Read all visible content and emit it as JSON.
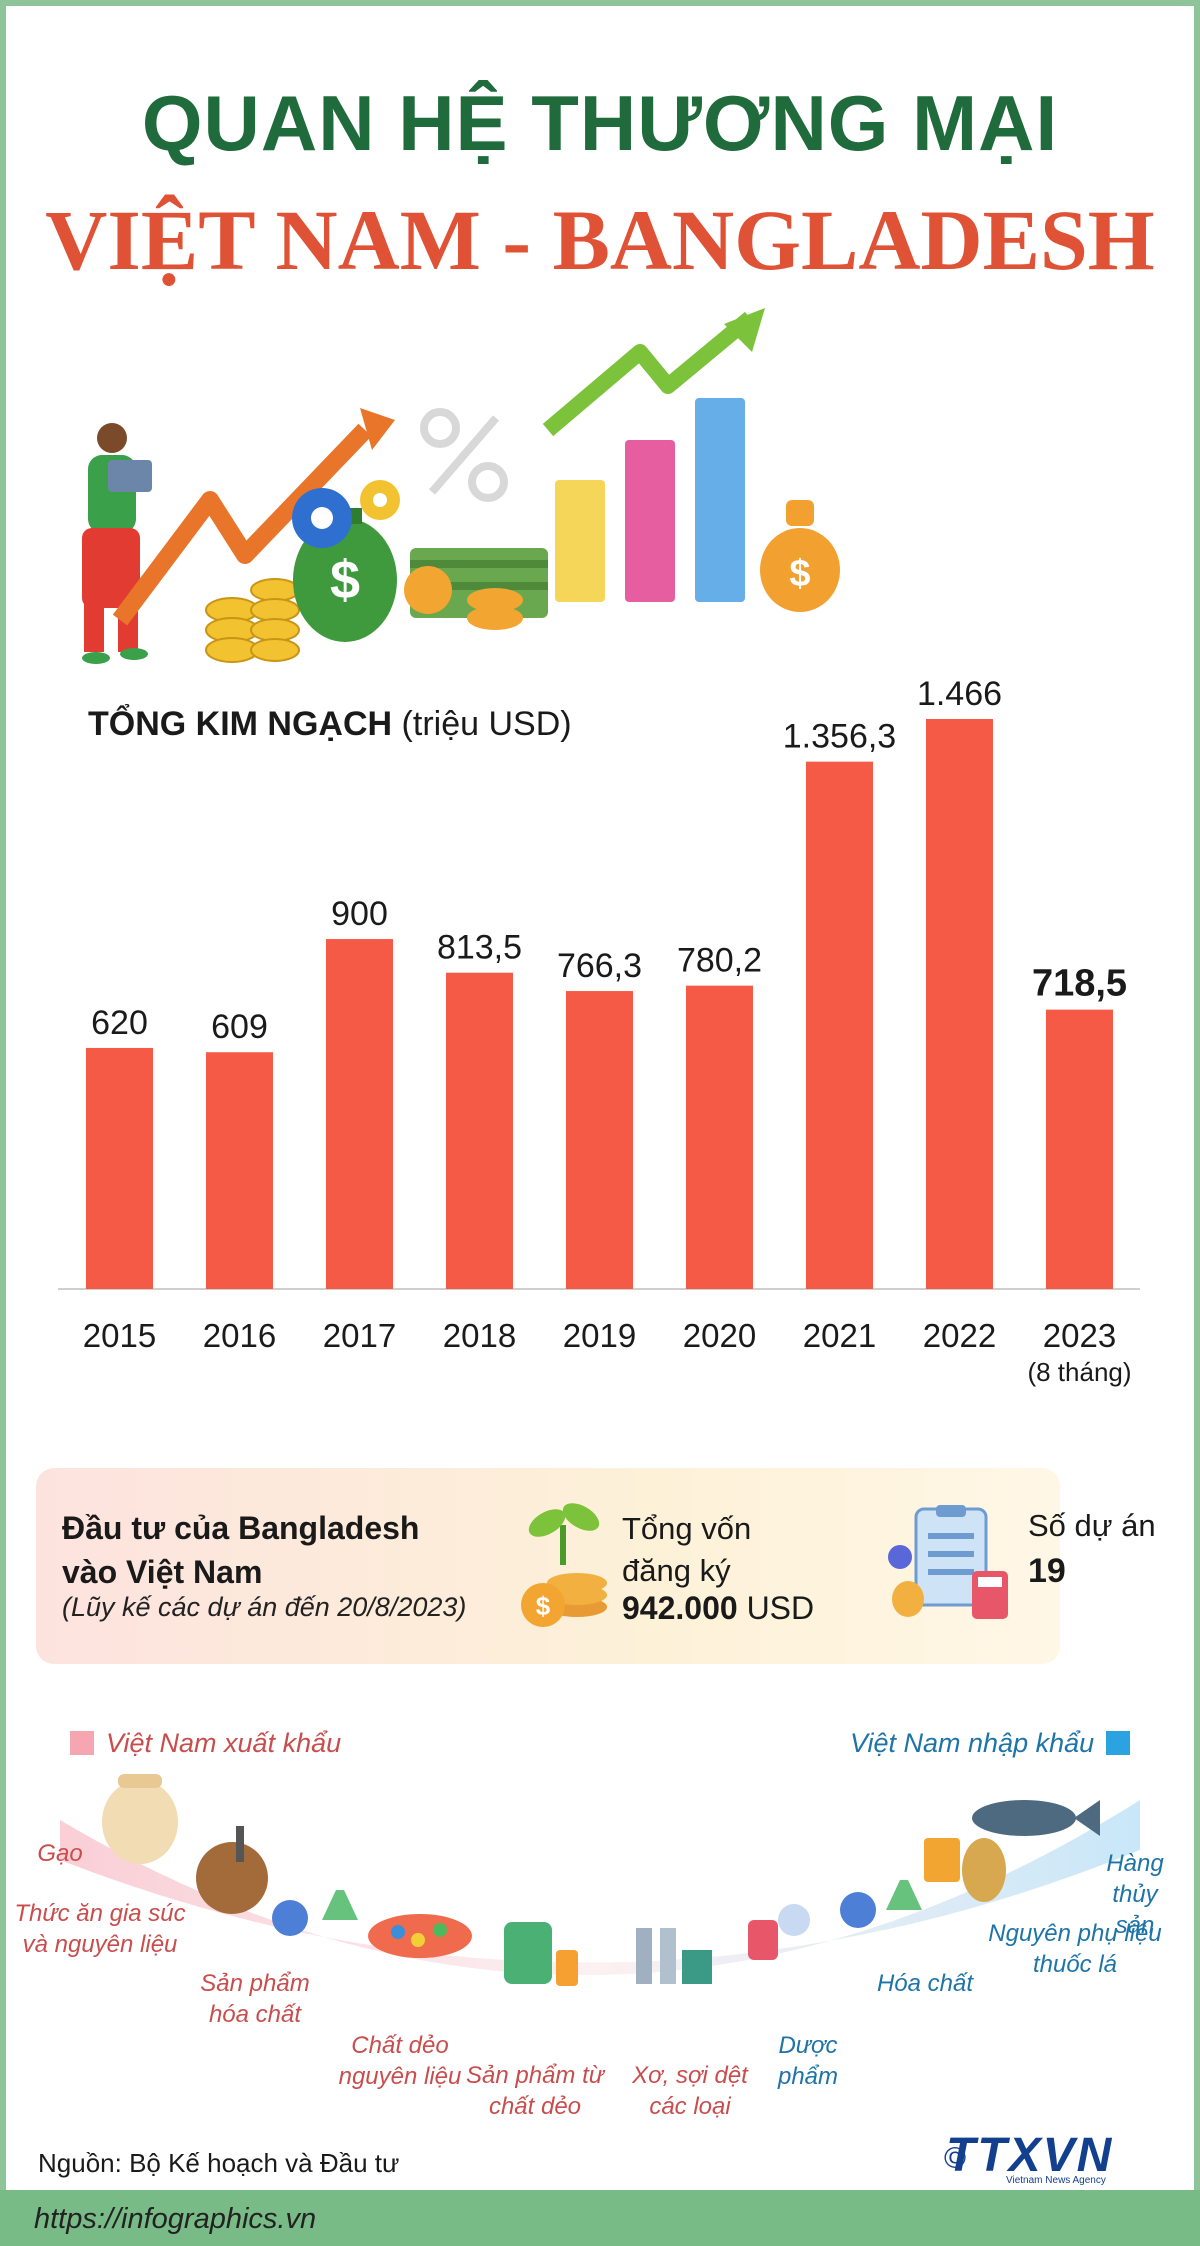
{
  "title": {
    "line1": "QUAN HỆ THƯƠNG MẠI",
    "line2": "VIỆT NAM -  BANGLADESH"
  },
  "chart_heading": {
    "bold": "TỔNG KIM NGẠCH",
    "unit": "(triệu USD)"
  },
  "chart_data": {
    "type": "bar",
    "categories": [
      "2015",
      "2016",
      "2017",
      "2018",
      "2019",
      "2020",
      "2021",
      "2022",
      "2023"
    ],
    "category_notes": [
      "",
      "",
      "",
      "",
      "",
      "",
      "",
      "",
      "(8 tháng)"
    ],
    "values": [
      620,
      609,
      900,
      813.5,
      766.3,
      780.2,
      1356.3,
      1466,
      718.5
    ],
    "value_labels": [
      "620",
      "609",
      "900",
      "813,5",
      "766,3",
      "780,2",
      "1.356,3",
      "1.466",
      "718,5"
    ],
    "title": "TỔNG KIM NGẠCH",
    "xlabel": "",
    "ylabel": "triệu USD",
    "ylim": [
      0,
      1466
    ],
    "grid": false,
    "bar_color": "#f55a47",
    "emphasized_label_index": 8
  },
  "investment": {
    "title_line1": "Đầu tư của Bangladesh",
    "title_line2": "vào Việt Nam",
    "note": "(Lũy kế các dự án đến 20/8/2023)",
    "capital_label_line1": "Tổng vốn",
    "capital_label_line2": "đăng ký",
    "capital_value": "942.000",
    "capital_unit": "USD",
    "projects_label": "Số dự án",
    "projects_value": "19"
  },
  "trade": {
    "export_legend": "Việt Nam xuất khẩu",
    "import_legend": "Việt Nam nhập khẩu",
    "export_color": "#f6a6b0",
    "import_color": "#2aa3e0",
    "exports": [
      "Gạo",
      "Thức ăn gia súc và nguyên liệu",
      "Sản phẩm hóa chất",
      "Chất dẻo nguyên liệu",
      "Sản phẩm từ chất dẻo",
      "Xơ, sợi dệt các loại"
    ],
    "imports": [
      "Dược phẩm",
      "Hóa chất",
      "Nguyên phụ liệu thuốc lá",
      "Hàng thủy sản"
    ]
  },
  "source": "Nguồn: Bộ Kế hoạch và Đầu tư",
  "footer": {
    "url": "https://infographics.vn",
    "logo": "TTXVN",
    "logo_sub": "Vietnam News Agency",
    "copyright": "©"
  }
}
